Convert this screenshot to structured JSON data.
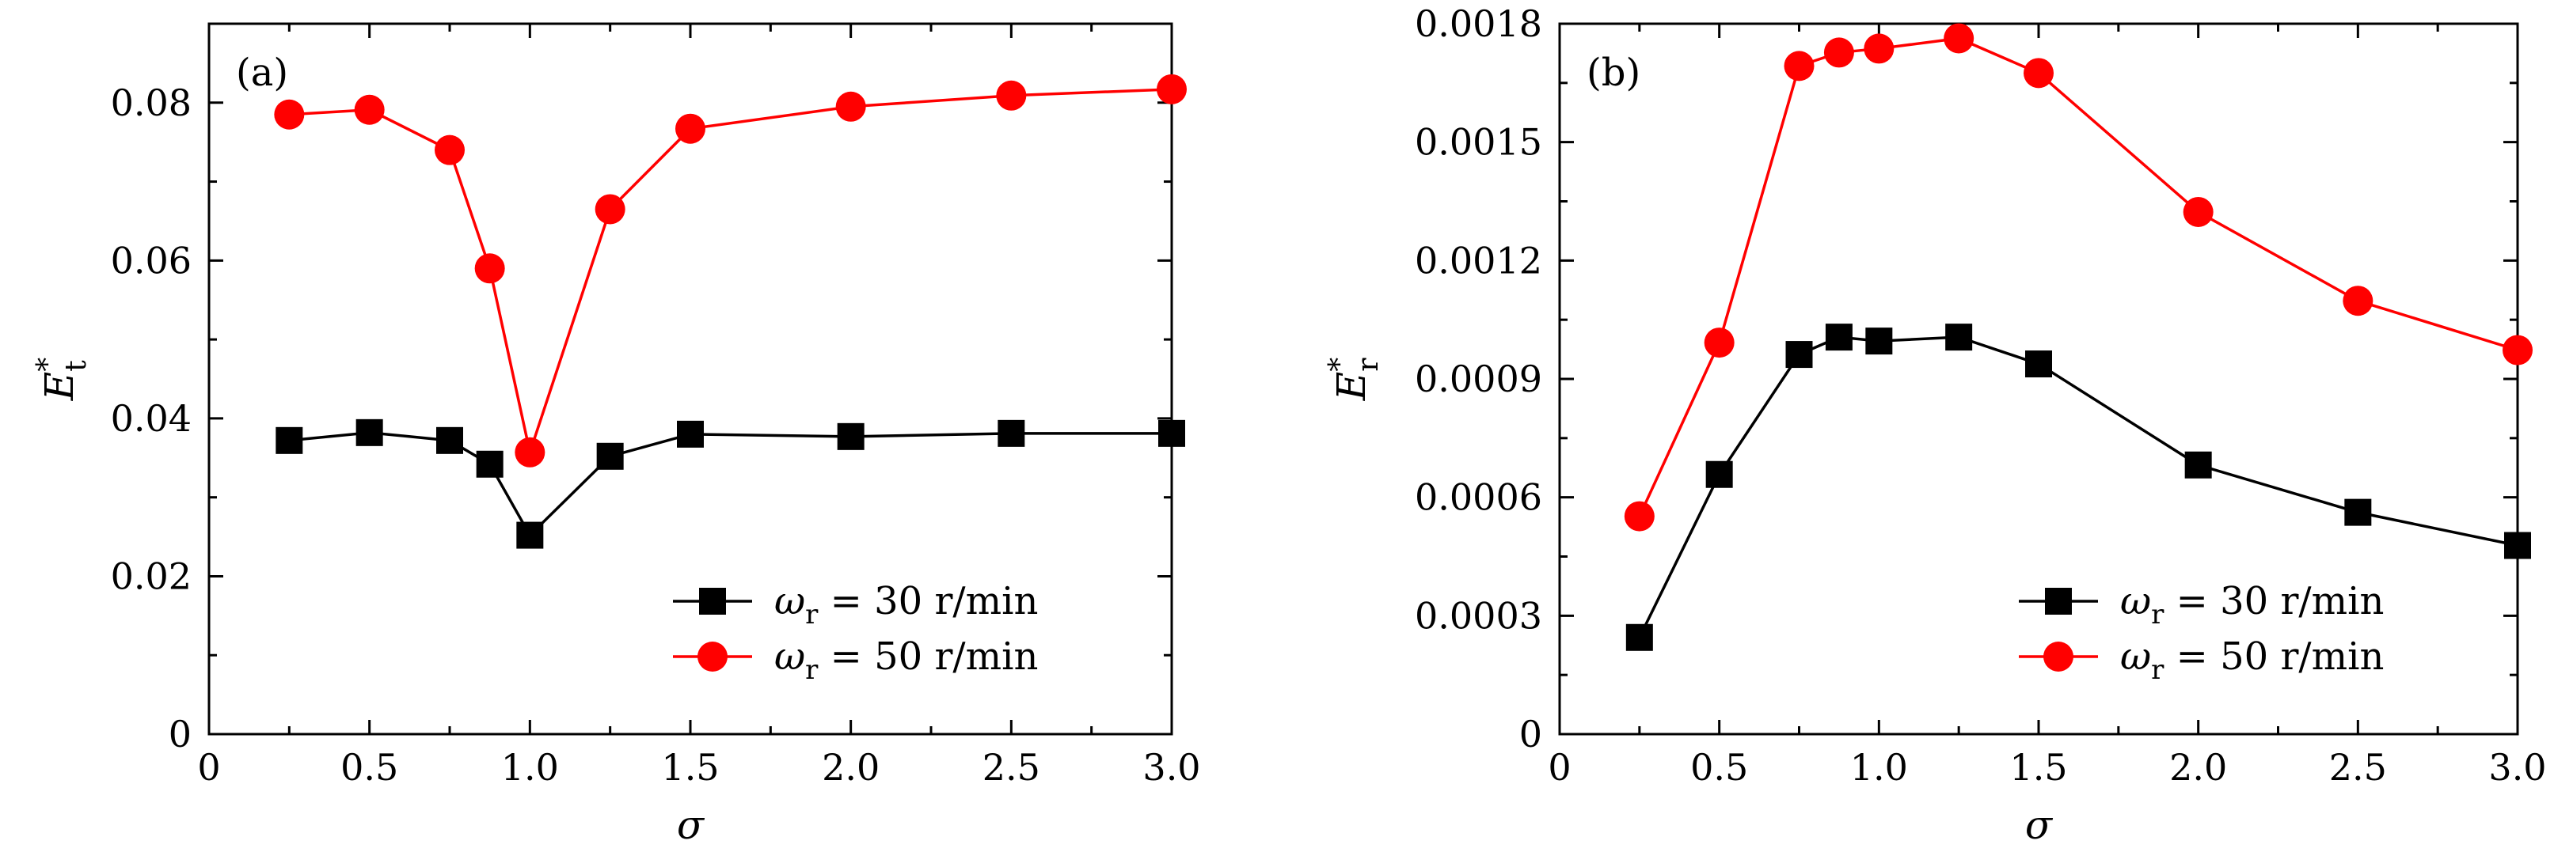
{
  "chart_data": [
    {
      "type": "line",
      "panel_label": "(a)",
      "xlabel": "σ",
      "ylabel": "E*t",
      "xlim": [
        0,
        3.0
      ],
      "ylim": [
        0,
        0.09
      ],
      "xticks": [
        0,
        0.5,
        1.0,
        1.5,
        2.0,
        2.5,
        3.0
      ],
      "xtick_labels": [
        "0",
        "0.5",
        "1.0",
        "1.5",
        "2.0",
        "2.5",
        "3.0"
      ],
      "yticks": [
        0,
        0.02,
        0.04,
        0.06,
        0.08
      ],
      "ytick_labels": [
        "0",
        "0.02",
        "0.04",
        "0.06",
        "0.08"
      ],
      "legend_placement": "bottom-right",
      "series": [
        {
          "name": "ωr = 30 r/min",
          "color": "#000000",
          "marker": "square",
          "x": [
            0.25,
            0.5,
            0.75,
            0.875,
            1.0,
            1.25,
            1.5,
            2.0,
            2.5,
            3.0
          ],
          "y": [
            0.0372,
            0.0382,
            0.0372,
            0.0342,
            0.0252,
            0.0352,
            0.038,
            0.0377,
            0.0381,
            0.0381
          ]
        },
        {
          "name": "ωr = 50 r/min",
          "color": "#ff0000",
          "marker": "circle",
          "x": [
            0.25,
            0.5,
            0.75,
            0.875,
            1.0,
            1.25,
            1.5,
            2.0,
            2.5,
            3.0
          ],
          "y": [
            0.0785,
            0.0791,
            0.074,
            0.059,
            0.0357,
            0.0665,
            0.0767,
            0.0795,
            0.0809,
            0.0817
          ]
        }
      ]
    },
    {
      "type": "line",
      "panel_label": "(b)",
      "xlabel": "σ",
      "ylabel": "E*r",
      "xlim": [
        0,
        3.0
      ],
      "ylim": [
        0,
        0.0018
      ],
      "xticks": [
        0,
        0.5,
        1.0,
        1.5,
        2.0,
        2.5,
        3.0
      ],
      "xtick_labels": [
        "0",
        "0.5",
        "1.0",
        "1.5",
        "2.0",
        "2.5",
        "3.0"
      ],
      "yticks": [
        0,
        0.0003,
        0.0006,
        0.0009,
        0.0012,
        0.0015,
        0.0018
      ],
      "ytick_labels": [
        "0",
        "0.0003",
        "0.0006",
        "0.0009",
        "0.0012",
        "0.0015",
        "0.0018"
      ],
      "legend_placement": "bottom-right",
      "series": [
        {
          "name": "ωr = 30 r/min",
          "color": "#000000",
          "marker": "square",
          "x": [
            0.25,
            0.5,
            0.75,
            0.875,
            1.0,
            1.25,
            1.5,
            2.0,
            2.5,
            3.0
          ],
          "y": [
            0.000245,
            0.000658,
            0.000962,
            0.001006,
            0.000996,
            0.001006,
            0.000938,
            0.000682,
            0.000562,
            0.000478
          ]
        },
        {
          "name": "ωr = 50 r/min",
          "color": "#ff0000",
          "marker": "circle",
          "x": [
            0.25,
            0.5,
            0.75,
            0.875,
            1.0,
            1.25,
            1.5,
            2.0,
            2.5,
            3.0
          ],
          "y": [
            0.000552,
            0.000992,
            0.001693,
            0.001727,
            0.001737,
            0.001763,
            0.001675,
            0.001323,
            0.001098,
            0.000973
          ]
        }
      ]
    }
  ]
}
